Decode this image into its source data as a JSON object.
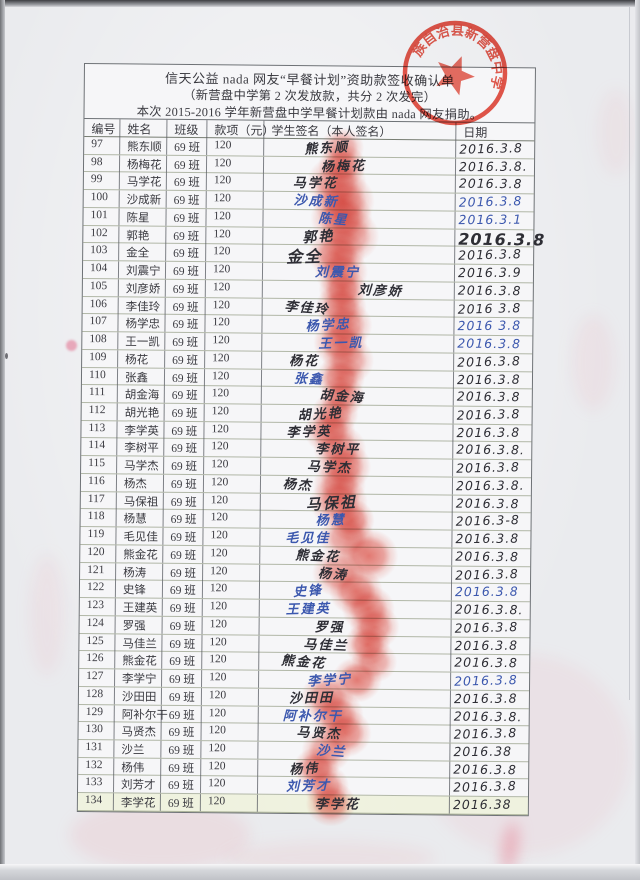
{
  "document": {
    "title_line1": "信天公益 nada 网友“早餐计划”资助款签收确认单",
    "title_line2": "（新营盘中学第 2 次发放款，共分 2 次发完）",
    "title_line3": "本次 2015-2016 学年新营盘中学早餐计划款由 nada 网友捐助。",
    "stamp_text": "族自治县新营盘中学",
    "accent_red": "#e23b2c",
    "ink_black": "#2e2e35",
    "ink_blue": "#3c58ae"
  },
  "table": {
    "headers": [
      "编号",
      "姓名",
      "班级",
      "款项（元）",
      "学生签名（本人签名）",
      "日期"
    ],
    "rows": [
      {
        "no": "97",
        "name": "熊东顺",
        "cls": "69 班",
        "amt": "120",
        "date": "2016.3.8",
        "si": "bk",
        "di": "bk"
      },
      {
        "no": "98",
        "name": "杨梅花",
        "cls": "69 班",
        "amt": "120",
        "date": "2016.3.8.",
        "si": "bk",
        "di": "bk"
      },
      {
        "no": "99",
        "name": "马学花",
        "cls": "69 班",
        "amt": "120",
        "date": "2016.3.8",
        "si": "bk",
        "di": "bk"
      },
      {
        "no": "100",
        "name": "沙成新",
        "cls": "69 班",
        "amt": "120",
        "date": "2016.3.8",
        "si": "bl",
        "di": "bl"
      },
      {
        "no": "101",
        "name": "陈星",
        "cls": "69 班",
        "amt": "120",
        "date": "2016.3.1",
        "si": "bl",
        "di": "bl"
      },
      {
        "no": "102",
        "name": "郭艳",
        "cls": "69 班",
        "amt": "120",
        "date": "2016.3.8",
        "si": "bk",
        "di": "bk"
      },
      {
        "no": "103",
        "name": "金全",
        "cls": "69 班",
        "amt": "120",
        "date": "2016.3.8",
        "si": "bk",
        "di": "bk"
      },
      {
        "no": "104",
        "name": "刘震宁",
        "cls": "69 班",
        "amt": "120",
        "date": "2016.3.9",
        "si": "bl",
        "di": "bk"
      },
      {
        "no": "105",
        "name": "刘彦娇",
        "cls": "69 班",
        "amt": "120",
        "date": "2016.3.8",
        "si": "bk",
        "di": "bk"
      },
      {
        "no": "106",
        "name": "李佳玲",
        "cls": "69 班",
        "amt": "120",
        "date": "2016 3.8",
        "si": "bk",
        "di": "bk"
      },
      {
        "no": "107",
        "name": "杨学忠",
        "cls": "69 班",
        "amt": "120",
        "date": "2016 3.8",
        "si": "bl",
        "di": "bl"
      },
      {
        "no": "108",
        "name": "王一凯",
        "cls": "69 班",
        "amt": "120",
        "date": "2016.3.8",
        "si": "bl",
        "di": "bl"
      },
      {
        "no": "109",
        "name": "杨花",
        "cls": "69 班",
        "amt": "120",
        "date": "2016.3.8",
        "si": "bk",
        "di": "bk"
      },
      {
        "no": "110",
        "name": "张鑫",
        "cls": "69 班",
        "amt": "120",
        "date": "2016.3.8",
        "si": "bl",
        "di": "bk"
      },
      {
        "no": "111",
        "name": "胡金海",
        "cls": "69 班",
        "amt": "120",
        "date": "2016.3.8",
        "si": "bk",
        "di": "bk"
      },
      {
        "no": "112",
        "name": "胡光艳",
        "cls": "69 班",
        "amt": "120",
        "date": "2016.3.8",
        "si": "bk",
        "di": "bk"
      },
      {
        "no": "113",
        "name": "李学英",
        "cls": "69 班",
        "amt": "120",
        "date": "2016.3.8",
        "si": "bk",
        "di": "bk"
      },
      {
        "no": "114",
        "name": "李树平",
        "cls": "69 班",
        "amt": "120",
        "date": "2016.3.8.",
        "si": "bk",
        "di": "bk"
      },
      {
        "no": "115",
        "name": "马学杰",
        "cls": "69 班",
        "amt": "120",
        "date": "2016.3.8",
        "si": "bk",
        "di": "bk"
      },
      {
        "no": "116",
        "name": "杨杰",
        "cls": "69 班",
        "amt": "120",
        "date": "2016.3.8.",
        "si": "bk",
        "di": "bk"
      },
      {
        "no": "117",
        "name": "马保祖",
        "cls": "69 班",
        "amt": "120",
        "date": "2016.3.8",
        "si": "bk",
        "di": "bk"
      },
      {
        "no": "118",
        "name": "杨慧",
        "cls": "69 班",
        "amt": "120",
        "date": "2016.3-8",
        "si": "bl",
        "di": "bk"
      },
      {
        "no": "119",
        "name": "毛见佳",
        "cls": "69 班",
        "amt": "120",
        "date": "2016.3.8",
        "si": "bl",
        "di": "bk"
      },
      {
        "no": "120",
        "name": "熊金花",
        "cls": "69 班",
        "amt": "120",
        "date": "2016.3.8",
        "si": "bk",
        "di": "bk"
      },
      {
        "no": "121",
        "name": "杨涛",
        "cls": "69 班",
        "amt": "120",
        "date": "2016.3.8",
        "si": "bk",
        "di": "bk"
      },
      {
        "no": "122",
        "name": "史锋",
        "cls": "69 班",
        "amt": "120",
        "date": "2016.3.8",
        "si": "bl",
        "di": "bl"
      },
      {
        "no": "123",
        "name": "王建英",
        "cls": "69 班",
        "amt": "120",
        "date": "2016.3.8.",
        "si": "bl",
        "di": "bk"
      },
      {
        "no": "124",
        "name": "罗强",
        "cls": "69 班",
        "amt": "120",
        "date": "2016.3.8",
        "si": "bk",
        "di": "bk"
      },
      {
        "no": "125",
        "name": "马佳兰",
        "cls": "69 班",
        "amt": "120",
        "date": "2016.3.8",
        "si": "bk",
        "di": "bk"
      },
      {
        "no": "126",
        "name": "熊金花",
        "cls": "69 班",
        "amt": "120",
        "date": "2016.3.8",
        "si": "bk",
        "di": "bk"
      },
      {
        "no": "127",
        "name": "李学宁",
        "cls": "69 班",
        "amt": "120",
        "date": "2016.3.8",
        "si": "bl",
        "di": "bl"
      },
      {
        "no": "128",
        "name": "沙田田",
        "cls": "69 班",
        "amt": "120",
        "date": "2016.3.8",
        "si": "bk",
        "di": "bk"
      },
      {
        "no": "129",
        "name": "阿补尔干",
        "cls": "69 班",
        "amt": "120",
        "date": "2016.3.8.",
        "si": "bl",
        "di": "bk"
      },
      {
        "no": "130",
        "name": "马贤杰",
        "cls": "69 班",
        "amt": "120",
        "date": "2016.3.8",
        "si": "bk",
        "di": "bk"
      },
      {
        "no": "131",
        "name": "沙兰",
        "cls": "69 班",
        "amt": "120",
        "date": "2016.38",
        "si": "bl",
        "di": "bk"
      },
      {
        "no": "132",
        "name": "杨伟",
        "cls": "69 班",
        "amt": "120",
        "date": "2016.3.8",
        "si": "bk",
        "di": "bk"
      },
      {
        "no": "133",
        "name": "刘芳才",
        "cls": "69 班",
        "amt": "120",
        "date": "2016.3.8",
        "si": "bl",
        "di": "bk"
      },
      {
        "no": "134",
        "name": "李学花",
        "cls": "69 班",
        "amt": "120",
        "date": "2016.38",
        "si": "bk",
        "di": "bk"
      }
    ]
  }
}
